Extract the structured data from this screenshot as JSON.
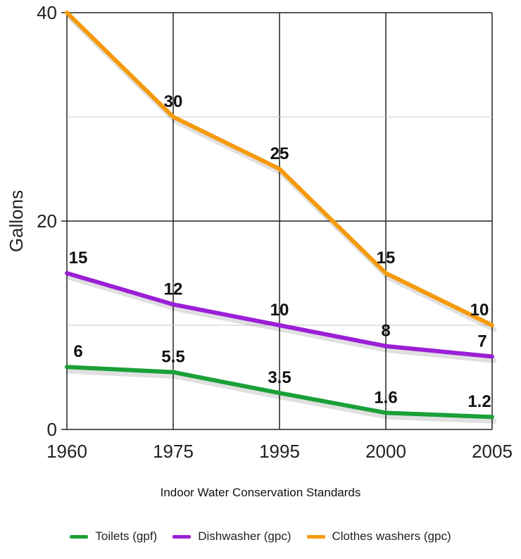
{
  "chart_data": {
    "type": "line",
    "title": "",
    "categories": [
      "1960",
      "1975",
      "1995",
      "2000",
      "2005"
    ],
    "xlabel": "Indoor Water Conservation Standards",
    "ylabel": "Gallons",
    "ylim": [
      0,
      40
    ],
    "yticks": [
      "0",
      "20",
      "40"
    ],
    "grid": true,
    "legend_position": "bottom",
    "series": [
      {
        "name": "Toilets (gpf)",
        "color": "#1aa038",
        "values": [
          6,
          5.5,
          3.5,
          1.6,
          1.2
        ],
        "labels": [
          "6",
          "5.5",
          "3.5",
          "1.6",
          "1.2"
        ]
      },
      {
        "name": "Dishwasher (gpc)",
        "color": "#9b1fd6",
        "values": [
          15,
          12,
          10,
          8,
          7
        ],
        "labels": [
          "15",
          "12",
          "10",
          "8",
          "7"
        ]
      },
      {
        "name": "Clothes washers (gpc)",
        "color": "#f59a0c",
        "values": [
          40,
          30,
          25,
          15,
          10
        ],
        "labels": [
          "",
          "30",
          "25",
          "15",
          "10"
        ]
      }
    ]
  }
}
